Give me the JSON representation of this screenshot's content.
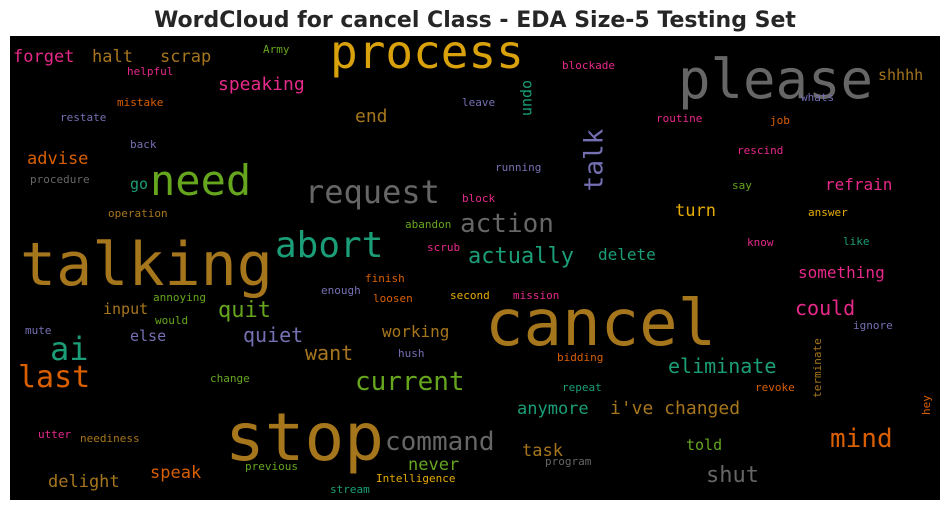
{
  "chart_data": {
    "type": "wordcloud",
    "title": "WordCloud for cancel Class - EDA Size-5 Testing Set",
    "background": "#000000",
    "words": [
      {
        "text": "process",
        "color": "#d9a20c"
      },
      {
        "text": "please",
        "color": "#666666"
      },
      {
        "text": "talking",
        "color": "#a6761d"
      },
      {
        "text": "cancel",
        "color": "#a6761d"
      },
      {
        "text": "stop",
        "color": "#a6761d"
      },
      {
        "text": "need",
        "color": "#66a61e"
      },
      {
        "text": "request",
        "color": "#666666"
      },
      {
        "text": "abort",
        "color": "#1b9e77"
      },
      {
        "text": "action",
        "color": "#666666"
      },
      {
        "text": "actually",
        "color": "#1b9e77"
      },
      {
        "text": "talk",
        "color": "#7570b3"
      },
      {
        "text": "ai",
        "color": "#1b9e77"
      },
      {
        "text": "last",
        "color": "#d95f02"
      },
      {
        "text": "quit",
        "color": "#66a61e"
      },
      {
        "text": "quiet",
        "color": "#7570b3"
      },
      {
        "text": "want",
        "color": "#a6761d"
      },
      {
        "text": "current",
        "color": "#66a61e"
      },
      {
        "text": "command",
        "color": "#666666"
      },
      {
        "text": "eliminate",
        "color": "#1b9e77"
      },
      {
        "text": "could",
        "color": "#e7298a"
      },
      {
        "text": "mind",
        "color": "#d95f02"
      },
      {
        "text": "shut",
        "color": "#666666"
      },
      {
        "text": "anymore",
        "color": "#1b9e77"
      },
      {
        "text": "i've changed",
        "color": "#a6761d"
      },
      {
        "text": "told",
        "color": "#66a61e"
      },
      {
        "text": "task",
        "color": "#a6761d"
      },
      {
        "text": "never",
        "color": "#66a61e"
      },
      {
        "text": "speak",
        "color": "#d95f02"
      },
      {
        "text": "delight",
        "color": "#a6761d"
      },
      {
        "text": "speaking",
        "color": "#e7298a"
      },
      {
        "text": "end",
        "color": "#a6761d"
      },
      {
        "text": "undo",
        "color": "#1b9e77"
      },
      {
        "text": "advise",
        "color": "#d95f02"
      },
      {
        "text": "forget",
        "color": "#e7298a"
      },
      {
        "text": "halt",
        "color": "#a6761d"
      },
      {
        "text": "scrap",
        "color": "#a6761d"
      },
      {
        "text": "shhhh",
        "color": "#a6761d"
      },
      {
        "text": "turn",
        "color": "#e6ab02"
      },
      {
        "text": "refrain",
        "color": "#e7298a"
      },
      {
        "text": "delete",
        "color": "#1b9e77"
      },
      {
        "text": "something",
        "color": "#e7298a"
      },
      {
        "text": "working",
        "color": "#a6761d"
      },
      {
        "text": "input",
        "color": "#a6761d"
      },
      {
        "text": "else",
        "color": "#7570b3"
      },
      {
        "text": "go",
        "color": "#1b9e77"
      },
      {
        "text": "Army",
        "color": "#66a61e"
      },
      {
        "text": "helpful",
        "color": "#e7298a"
      },
      {
        "text": "mistake",
        "color": "#d95f02"
      },
      {
        "text": "restate",
        "color": "#7570b3"
      },
      {
        "text": "back",
        "color": "#7570b3"
      },
      {
        "text": "procedure",
        "color": "#666666"
      },
      {
        "text": "operation",
        "color": "#a6761d"
      },
      {
        "text": "blockade",
        "color": "#e7298a"
      },
      {
        "text": "leave",
        "color": "#7570b3"
      },
      {
        "text": "routine",
        "color": "#e7298a"
      },
      {
        "text": "job",
        "color": "#d95f02"
      },
      {
        "text": "whats",
        "color": "#7570b3"
      },
      {
        "text": "rescind",
        "color": "#e7298a"
      },
      {
        "text": "running",
        "color": "#7570b3"
      },
      {
        "text": "block",
        "color": "#e7298a"
      },
      {
        "text": "say",
        "color": "#66a61e"
      },
      {
        "text": "answer",
        "color": "#e6ab02"
      },
      {
        "text": "abandon",
        "color": "#66a61e"
      },
      {
        "text": "scrub",
        "color": "#e7298a"
      },
      {
        "text": "know",
        "color": "#e7298a"
      },
      {
        "text": "like",
        "color": "#1b9e77"
      },
      {
        "text": "finish",
        "color": "#d95f02"
      },
      {
        "text": "annoying",
        "color": "#66a61e"
      },
      {
        "text": "enough",
        "color": "#7570b3"
      },
      {
        "text": "loosen",
        "color": "#d95f02"
      },
      {
        "text": "second",
        "color": "#e6ab02"
      },
      {
        "text": "mission",
        "color": "#e7298a"
      },
      {
        "text": "would",
        "color": "#66a61e"
      },
      {
        "text": "mute",
        "color": "#7570b3"
      },
      {
        "text": "ignore",
        "color": "#7570b3"
      },
      {
        "text": "hush",
        "color": "#7570b3"
      },
      {
        "text": "bidding",
        "color": "#d95f02"
      },
      {
        "text": "change",
        "color": "#66a61e"
      },
      {
        "text": "repeat",
        "color": "#1b9e77"
      },
      {
        "text": "revoke",
        "color": "#d95f02"
      },
      {
        "text": "terminate",
        "color": "#a6761d"
      },
      {
        "text": "hey",
        "color": "#d95f02"
      },
      {
        "text": "utter",
        "color": "#e7298a"
      },
      {
        "text": "neediness",
        "color": "#a6761d"
      },
      {
        "text": "previous",
        "color": "#66a61e"
      },
      {
        "text": "program",
        "color": "#666666"
      },
      {
        "text": "Intelligence",
        "color": "#e6ab02"
      },
      {
        "text": "stream",
        "color": "#1b9e77"
      }
    ]
  }
}
